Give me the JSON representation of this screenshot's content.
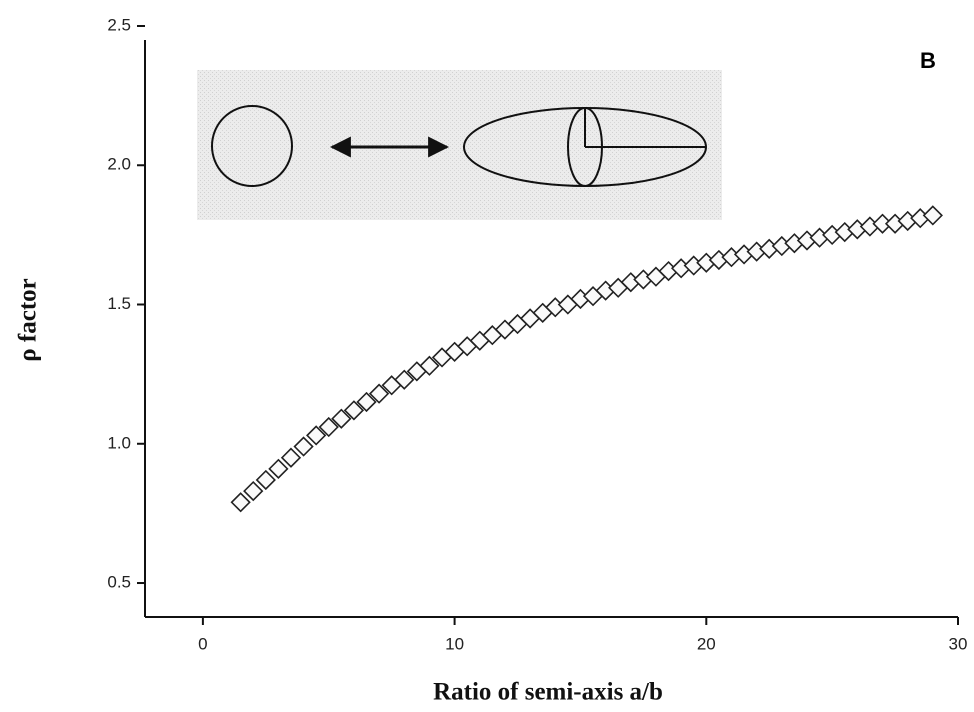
{
  "chart_data": {
    "type": "scatter",
    "panel_label": "B",
    "x_label": "Ratio of semi-axis a/b",
    "y_label": "ρ factor",
    "xlim": [
      -2.3,
      30
    ],
    "ylim": [
      0.378,
      2.5
    ],
    "xticks": [
      0,
      10,
      20,
      30
    ],
    "yticks": [
      0.5,
      {
        "value": 1,
        "label": "1.0"
      },
      1.5,
      {
        "value": 2,
        "label": "2.0"
      },
      2.5
    ],
    "marker": "diamond",
    "color": "#222222",
    "x": [
      1.5,
      2,
      2.5,
      3,
      3.5,
      4,
      4.5,
      5,
      5.5,
      6,
      6.5,
      7,
      7.5,
      8,
      8.5,
      9,
      9.5,
      10,
      10.5,
      11,
      11.5,
      12,
      12.5,
      13,
      13.5,
      14,
      14.5,
      15,
      15.5,
      16,
      16.5,
      17,
      17.5,
      18,
      18.5,
      19,
      19.5,
      20,
      20.5,
      21,
      21.5,
      22,
      22.5,
      23,
      23.5,
      24,
      24.5,
      25,
      25.5,
      26,
      26.5,
      27,
      27.5,
      28,
      28.5,
      29
    ],
    "values": [
      0.79,
      0.83,
      0.87,
      0.91,
      0.95,
      0.99,
      1.03,
      1.06,
      1.09,
      1.12,
      1.15,
      1.18,
      1.21,
      1.23,
      1.26,
      1.28,
      1.31,
      1.33,
      1.35,
      1.37,
      1.39,
      1.41,
      1.43,
      1.45,
      1.47,
      1.49,
      1.5,
      1.52,
      1.53,
      1.55,
      1.56,
      1.58,
      1.59,
      1.6,
      1.62,
      1.63,
      1.64,
      1.65,
      1.66,
      1.67,
      1.68,
      1.69,
      1.7,
      1.71,
      1.72,
      1.73,
      1.74,
      1.75,
      1.76,
      1.77,
      1.78,
      1.79,
      1.79,
      1.8,
      1.81,
      1.82
    ]
  }
}
